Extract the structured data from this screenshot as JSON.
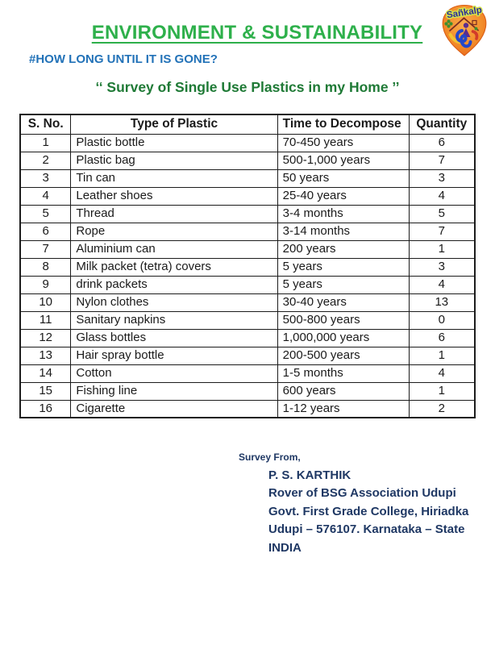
{
  "header": {
    "title": "ENVIRONMENT & SUSTAINABILITY",
    "hashtag": "#HOW LONG UNTIL IT IS GONE?",
    "survey_title": "‘‘ Survey of Single Use Plastics in my Home ’’"
  },
  "logo": {
    "text": "Sañkalp"
  },
  "table": {
    "headers": [
      "S. No.",
      "Type of Plastic",
      "Time to Decompose",
      "Quantity"
    ],
    "rows": [
      [
        "1",
        "Plastic bottle",
        "70-450 years",
        "6"
      ],
      [
        "2",
        "Plastic bag",
        "500-1,000 years",
        "7"
      ],
      [
        "3",
        "Tin can",
        "50 years",
        "3"
      ],
      [
        "4",
        "Leather shoes",
        "25-40 years",
        "4"
      ],
      [
        "5",
        "Thread",
        "3-4 months",
        "5"
      ],
      [
        "6",
        "Rope",
        "3-14 months",
        "7"
      ],
      [
        "7",
        "Aluminium can",
        "200 years",
        "1"
      ],
      [
        "8",
        "Milk packet (tetra) covers",
        "5 years",
        "3"
      ],
      [
        "9",
        "drink packets",
        "5 years",
        "4"
      ],
      [
        "10",
        "Nylon clothes",
        "30-40 years",
        "13"
      ],
      [
        "11",
        "Sanitary napkins",
        "500-800 years",
        "0"
      ],
      [
        "12",
        "Glass bottles",
        "1,000,000 years",
        "6"
      ],
      [
        "13",
        "Hair spray bottle",
        "200-500 years",
        "1"
      ],
      [
        "14",
        "Cotton",
        "1-5 months",
        "4"
      ],
      [
        "15",
        "Fishing line",
        "600 years",
        "1"
      ],
      [
        "16",
        "Cigarette",
        "1-12 years",
        "2"
      ]
    ]
  },
  "footer": {
    "label": "Survey From,",
    "lines": [
      "P. S. KARTHIK",
      "Rover of BSG Association Udupi",
      "Govt. First Grade College, Hiriadka",
      "Udupi – 576107. Karnataka – State",
      "INDIA"
    ]
  },
  "colors": {
    "title_green": "#2EB04B",
    "hashtag_blue": "#2272B8",
    "survey_green": "#1F7A36",
    "footer_navy": "#1F3864",
    "logo_orange": "#EE7A1F"
  }
}
